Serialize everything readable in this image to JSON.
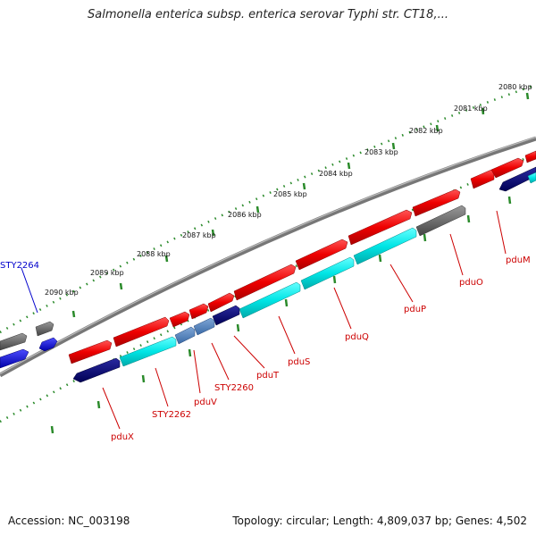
{
  "title": "Salmonella enterica subsp. enterica serovar Typhi str. CT18,...",
  "footer": {
    "accession": "Accession: NC_003198",
    "topology": "Topology: circular; Length: 4,809,037 bp; Genes: 4,502"
  },
  "scale_labels": [
    "2080 kbp",
    "2081 kbp",
    "2082 kbp",
    "2083 kbp",
    "2084 kbp",
    "2085 kbp",
    "2086 kbp",
    "2087 kbp",
    "2088 kbp",
    "2089 kbp",
    "2090 kbp"
  ],
  "gene_labels": {
    "STY2264": "STY2264",
    "pduX": "pduX",
    "STY2262": "STY2262",
    "pduV": "pduV",
    "STY2260": "STY2260",
    "pduT": "pduT",
    "pduS": "pduS",
    "pduQ": "pduQ",
    "pduP": "pduP",
    "pduO": "pduO",
    "pduM": "pduM"
  },
  "colors": {
    "forward_gene": "#ee0000",
    "reverse_gene": "#00dddd",
    "reverse_alt": "#4477bb",
    "dark_gene": "#000077",
    "other_gene": "#666666",
    "blue_gene": "#0000ee",
    "backbone": "#777777",
    "tick": "#2a8a2a",
    "label_red": "#cc0000",
    "label_blue": "#0000cc"
  }
}
